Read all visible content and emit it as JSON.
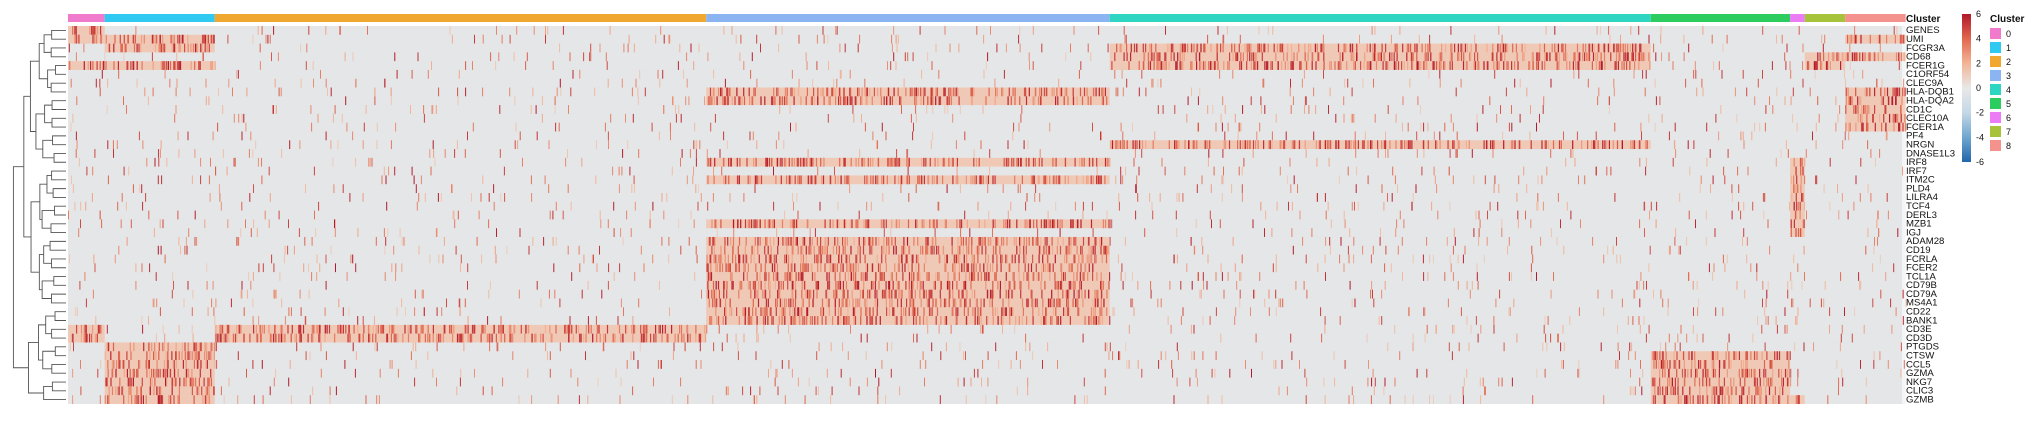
{
  "chart_data": {
    "type": "heatmap",
    "title": "",
    "genes": [
      "GENES",
      "UMI",
      "FCGR3A",
      "CD68",
      "FCER1G",
      "C1ORF54",
      "CLEC9A",
      "HLA-DQB1",
      "HLA-DQA2",
      "CD1C",
      "CLEC10A",
      "FCER1A",
      "PF4",
      "NRGN",
      "DNASE1L3",
      "IRF8",
      "IRF7",
      "ITM2C",
      "PLD4",
      "LILRA4",
      "TCF4",
      "DERL3",
      "MZB1",
      "IGJ",
      "ADAM28",
      "CD19",
      "FCRLA",
      "FCER2",
      "TCL1A",
      "CD79B",
      "CD79A",
      "MS4A1",
      "CD22",
      "BANK1",
      "CD3E",
      "CD3D",
      "PTGDS",
      "CTSW",
      "CCL5",
      "GZMA",
      "NKG7",
      "CLIC3",
      "GZMB"
    ],
    "clusters": [
      {
        "name": "0",
        "color": "#F07ACB",
        "fraction": 0.02
      },
      {
        "name": "1",
        "color": "#2FC9F2",
        "fraction": 0.06
      },
      {
        "name": "2",
        "color": "#F0A830",
        "fraction": 0.268
      },
      {
        "name": "3",
        "color": "#8BB5F2",
        "fraction": 0.22
      },
      {
        "name": "4",
        "color": "#2ED6C2",
        "fraction": 0.295
      },
      {
        "name": "5",
        "color": "#2DCC5E",
        "fraction": 0.076
      },
      {
        "name": "6",
        "color": "#EC7CF5",
        "fraction": 0.008
      },
      {
        "name": "7",
        "color": "#A7C23B",
        "fraction": 0.022
      },
      {
        "name": "8",
        "color": "#F4928E",
        "fraction": 0.033
      }
    ],
    "high_expression": {
      "0": [
        "GENES",
        "UMI",
        "FCER1G",
        "CD3E",
        "CD3D"
      ],
      "1": [
        "UMI",
        "FCGR3A",
        "FCER1G",
        "PTGDS",
        "CTSW",
        "CCL5",
        "GZMA",
        "NKG7",
        "CLIC3",
        "GZMB"
      ],
      "2": [
        "CD3E",
        "CD3D"
      ],
      "3": [
        "HLA-DQB1",
        "HLA-DQA2",
        "IRF8",
        "ITM2C",
        "MZB1",
        "ADAM28",
        "CD19",
        "FCRLA",
        "FCER2",
        "TCL1A",
        "CD79B",
        "CD79A",
        "MS4A1",
        "CD22",
        "BANK1"
      ],
      "4": [
        "FCGR3A",
        "CD68",
        "FCER1G",
        "NRGN"
      ],
      "5": [
        "CTSW",
        "CCL5",
        "GZMA",
        "NKG7",
        "CLIC3",
        "GZMB"
      ],
      "6": [
        "IRF8",
        "IRF7",
        "ITM2C",
        "PLD4",
        "LILRA4",
        "TCF4",
        "DERL3",
        "MZB1",
        "IGJ",
        "GZMB"
      ],
      "7": [
        "CD68",
        "FCER1G"
      ],
      "8": [
        "UMI",
        "CD68",
        "HLA-DQB1",
        "HLA-DQA2",
        "CD1C",
        "CLEC10A",
        "FCER1A"
      ]
    },
    "color_scale": {
      "min": -6,
      "max": 6,
      "ticks": [
        6,
        4,
        2,
        0,
        -2,
        -4,
        -6
      ],
      "stops": [
        {
          "value": -6,
          "color": "#2166AC"
        },
        {
          "value": -4,
          "color": "#6FA6CF"
        },
        {
          "value": -2,
          "color": "#C4D8E6"
        },
        {
          "value": 0,
          "color": "#E8E8E8"
        },
        {
          "value": 2,
          "color": "#F3B496"
        },
        {
          "value": 4,
          "color": "#E0684F"
        },
        {
          "value": 6,
          "color": "#B2182B"
        }
      ]
    },
    "annotation_legend": {
      "title": "Cluster",
      "items": [
        "0",
        "1",
        "2",
        "3",
        "4",
        "5",
        "6",
        "7",
        "8"
      ]
    },
    "row_dendrogram": true,
    "grid": false
  }
}
